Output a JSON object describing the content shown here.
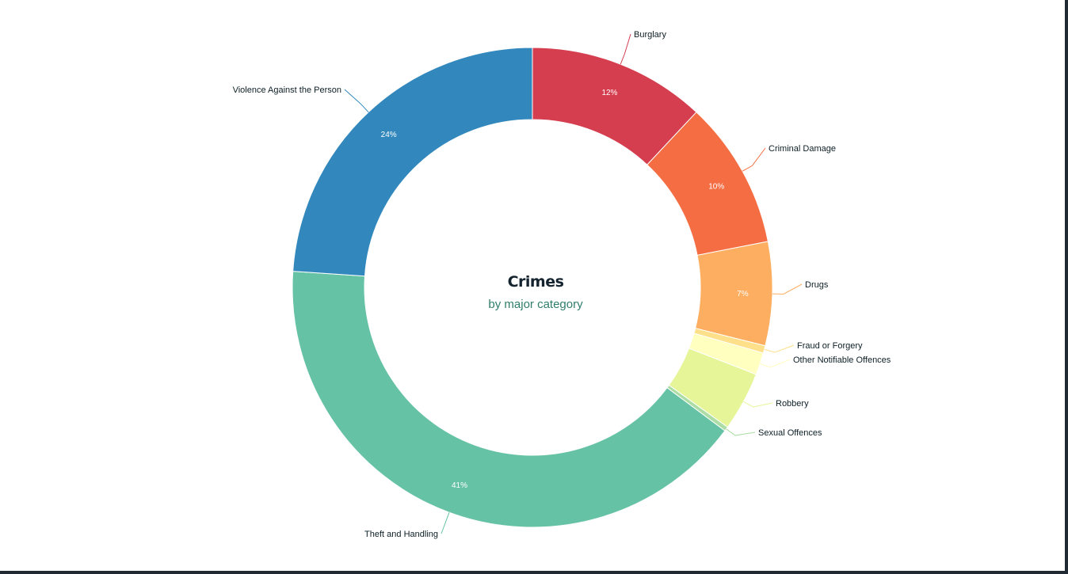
{
  "chart_data": {
    "type": "pie",
    "variant": "donut",
    "title": "Crimes",
    "subtitle": "by major category",
    "unit": "%",
    "legend": "none",
    "slices": [
      {
        "label": "Burglary",
        "value": 12,
        "pct_label": "12%",
        "color": "#d53e4f"
      },
      {
        "label": "Criminal Damage",
        "value": 10,
        "pct_label": "10%",
        "color": "#f46d43"
      },
      {
        "label": "Drugs",
        "value": 7,
        "pct_label": "7%",
        "color": "#fdae61"
      },
      {
        "label": "Fraud or Forgery",
        "value": 0.5,
        "pct_label": "",
        "color": "#fee08b"
      },
      {
        "label": "Other Notifiable Offences",
        "value": 1.5,
        "pct_label": "",
        "color": "#ffffbf"
      },
      {
        "label": "Robbery",
        "value": 4,
        "pct_label": "",
        "color": "#e6f598"
      },
      {
        "label": "Sexual Offences",
        "value": 0.3,
        "pct_label": "",
        "color": "#abdda4"
      },
      {
        "label": "Theft and Handling",
        "value": 41,
        "pct_label": "41%",
        "color": "#66c2a5"
      },
      {
        "label": "Violence Against the Person",
        "value": 24,
        "pct_label": "24%",
        "color": "#3288bd"
      }
    ]
  }
}
